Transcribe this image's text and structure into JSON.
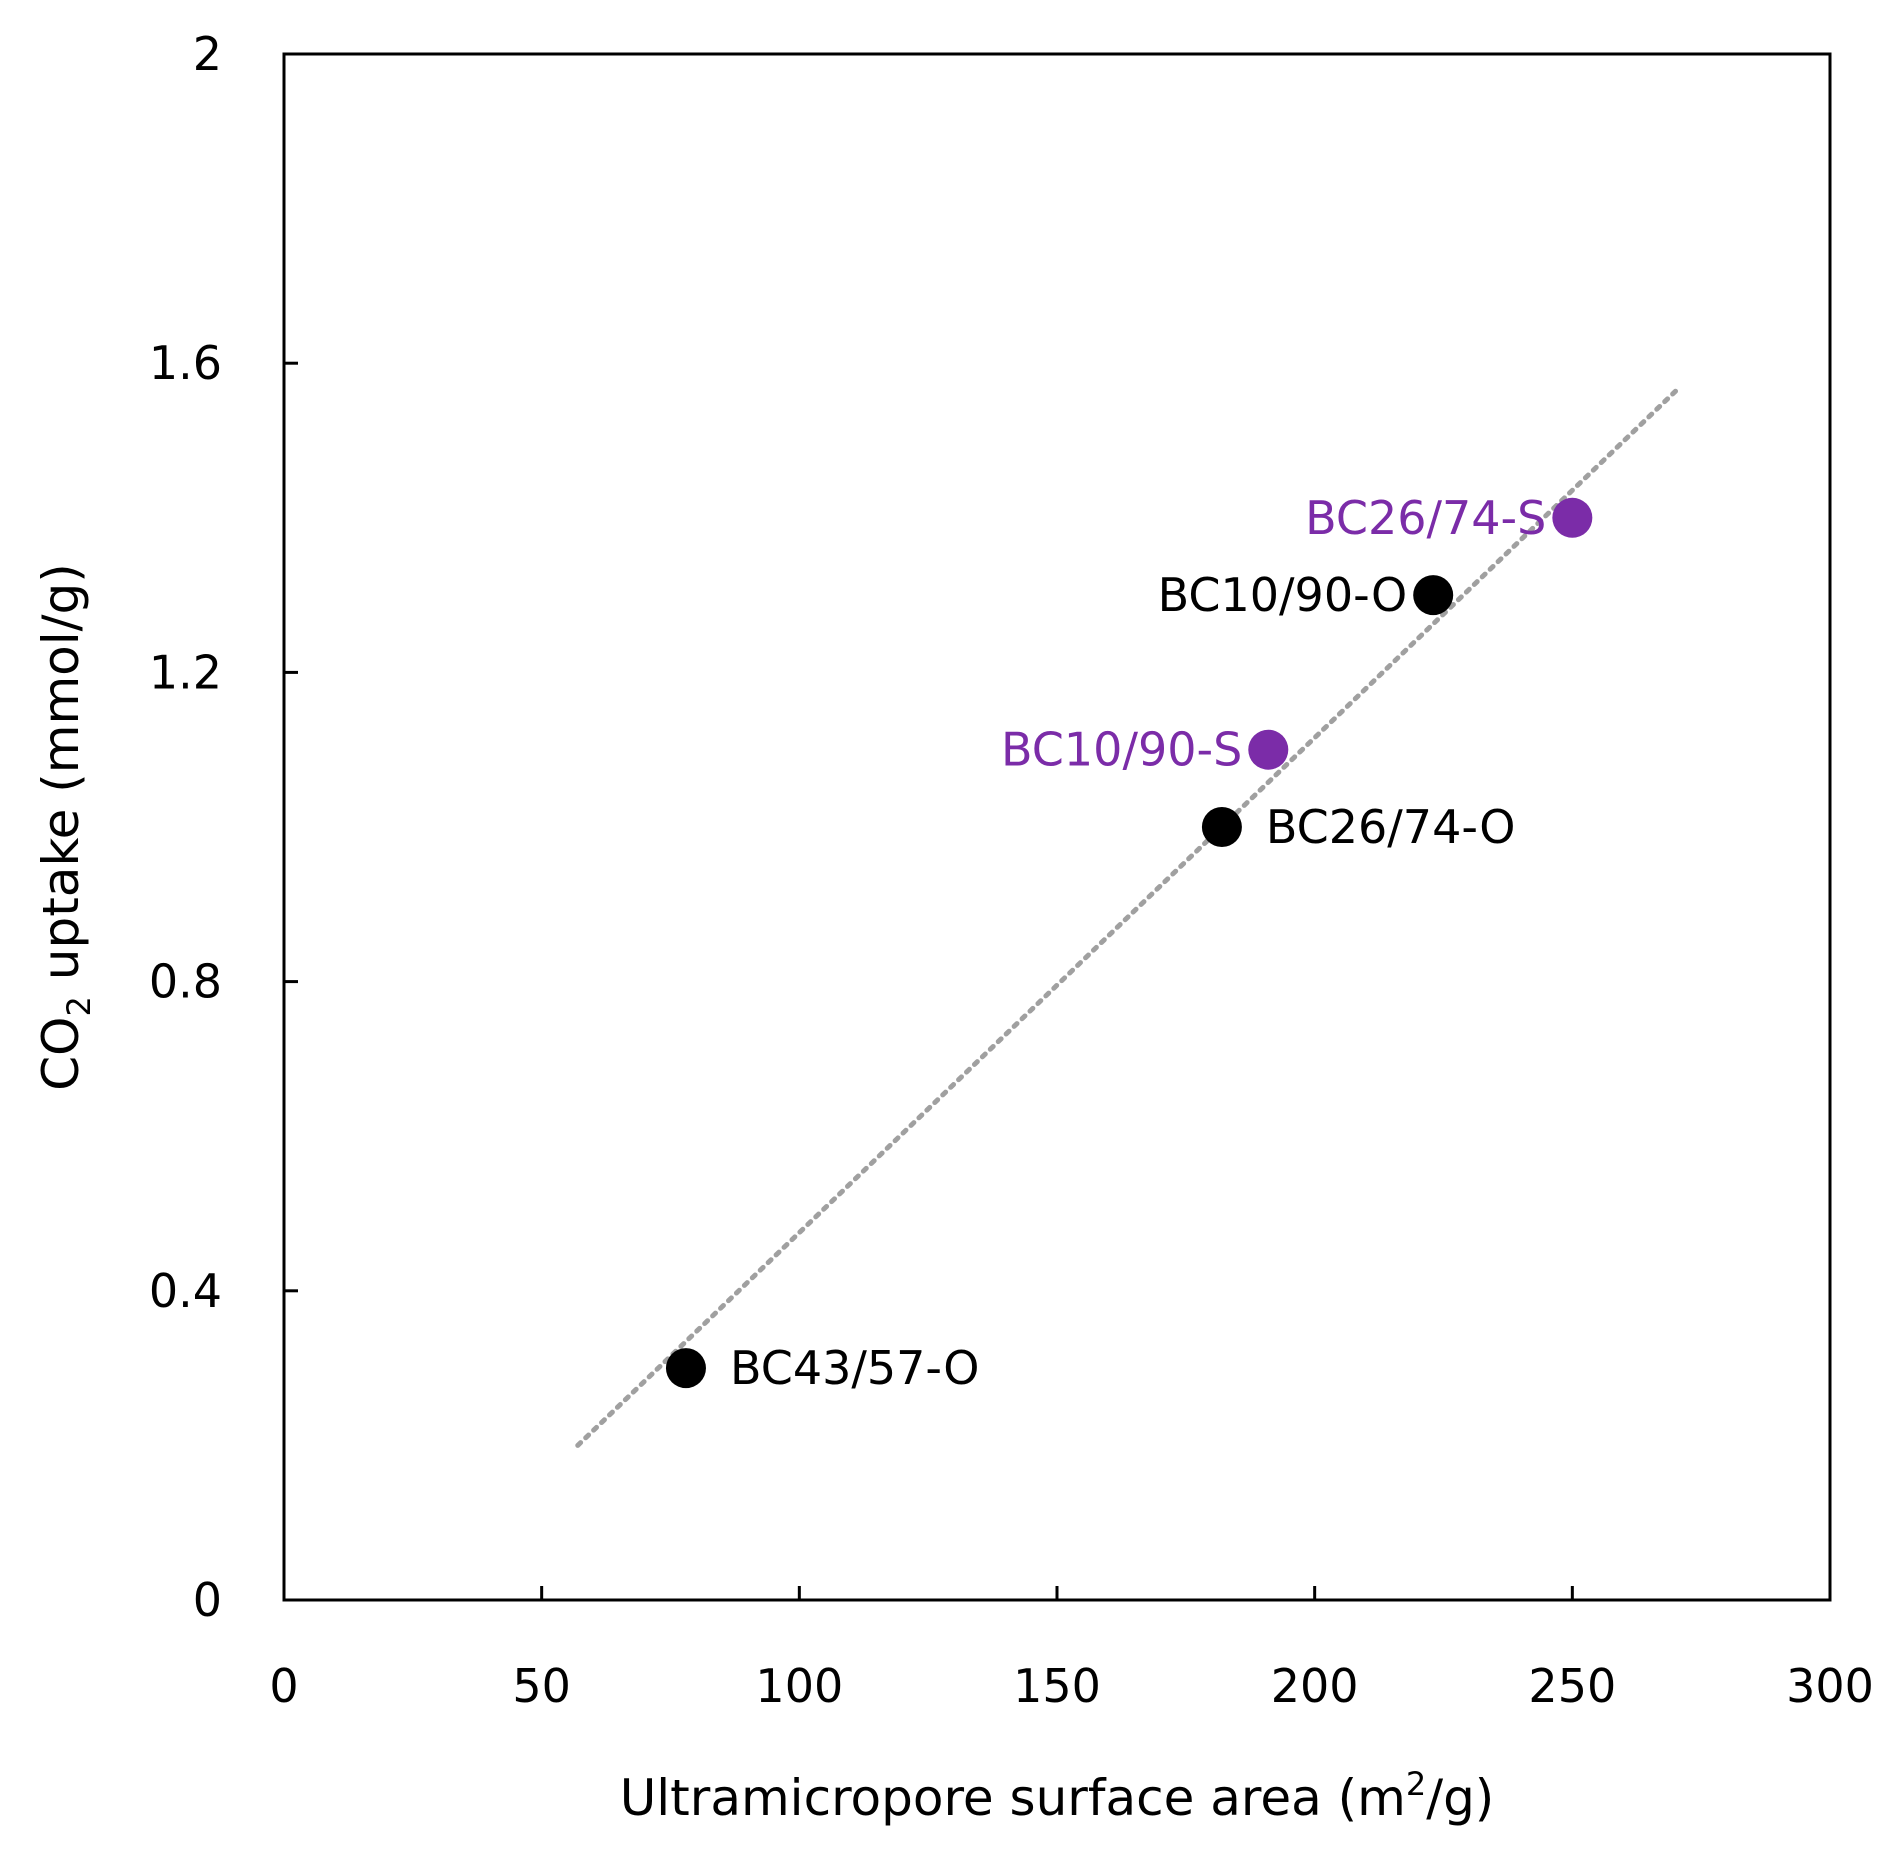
{
  "chart_data": {
    "type": "scatter",
    "title": "",
    "xlabel": "Ultramicropore surface area (m2/g)",
    "xlabel_parts": {
      "main": "Ultramicropore surface area (m",
      "sup": "2",
      "tail": "/g)"
    },
    "ylabel": "CO2 uptake (mmol/g)",
    "ylabel_parts": {
      "main": "CO",
      "sub": "2",
      "tail": " uptake (mmol/g)"
    },
    "xlim": [
      0,
      300
    ],
    "ylim": [
      0,
      2
    ],
    "xticks": [
      "0",
      "50",
      "100",
      "150",
      "200",
      "250",
      "300"
    ],
    "xtick_values": [
      0,
      50,
      100,
      150,
      200,
      250,
      300
    ],
    "yticks": [
      "0",
      "0.4",
      "0.8",
      "1.2",
      "1.6",
      "2"
    ],
    "ytick_values": [
      0,
      0.4,
      0.8,
      1.2,
      1.6,
      2
    ],
    "grid": false,
    "series": [
      {
        "name": "O",
        "color": "#000000",
        "points": [
          {
            "label": "BC43/57-O",
            "x": 78,
            "y": 0.3,
            "label_side": "right"
          },
          {
            "label": "BC26/74-O",
            "x": 182,
            "y": 1.0,
            "label_side": "right"
          },
          {
            "label": "BC10/90-O",
            "x": 223,
            "y": 1.3,
            "label_side": "left"
          }
        ]
      },
      {
        "name": "S",
        "color": "#7B2CA8",
        "points": [
          {
            "label": "BC10/90-S",
            "x": 191,
            "y": 1.1,
            "label_side": "left"
          },
          {
            "label": "BC26/74-S",
            "x": 250,
            "y": 1.4,
            "label_side": "left"
          }
        ]
      }
    ],
    "trendline": {
      "style": "dotted",
      "color": "#A0A0A0",
      "x": [
        57,
        271
      ],
      "y": [
        0.2,
        1.57
      ]
    }
  }
}
